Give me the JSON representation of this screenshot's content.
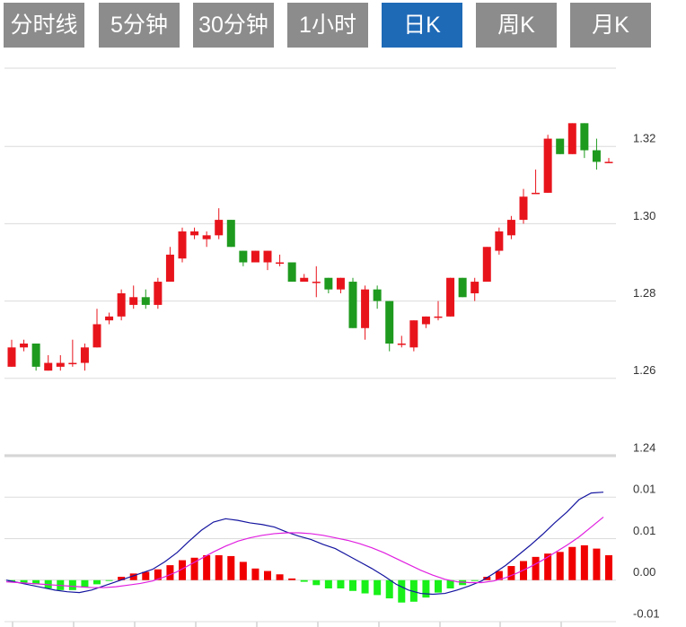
{
  "tabs": [
    "分时线",
    "5分钟",
    "30分钟",
    "1小时",
    "日K",
    "周K",
    "月K"
  ],
  "active_tab": 4,
  "chart_data": [
    {
      "type": "candlestick",
      "up_color": "#e8141c",
      "down_color": "#1e9a1e",
      "grid": true,
      "ylim": [
        1.24,
        1.34
      ],
      "yticks": [
        1.24,
        1.26,
        1.28,
        {
          "value": 1.3,
          "label": "1.30"
        },
        1.32
      ],
      "open": [
        1.263,
        1.268,
        1.269,
        1.262,
        1.263,
        1.264,
        1.264,
        1.268,
        1.275,
        1.276,
        1.279,
        1.281,
        1.279,
        1.285,
        1.291,
        1.297,
        1.296,
        1.297,
        1.301,
        1.293,
        1.29,
        1.29,
        1.29,
        1.29,
        1.285,
        1.285,
        1.286,
        1.283,
        1.285,
        1.273,
        1.283,
        1.28,
        1.269,
        1.268,
        1.274,
        1.276,
        1.276,
        1.286,
        1.282,
        1.285,
        1.293,
        1.297,
        1.301,
        1.308,
        1.308,
        1.322,
        1.318,
        1.326,
        1.319,
        1.316
      ],
      "high": [
        1.27,
        1.27,
        1.269,
        1.266,
        1.266,
        1.27,
        1.269,
        1.278,
        1.277,
        1.283,
        1.284,
        1.283,
        1.286,
        1.294,
        1.299,
        1.299,
        1.298,
        1.304,
        1.301,
        1.293,
        1.293,
        1.293,
        1.292,
        1.29,
        1.287,
        1.289,
        1.286,
        1.286,
        1.286,
        1.284,
        1.284,
        1.28,
        1.271,
        1.275,
        1.276,
        1.28,
        1.286,
        1.286,
        1.286,
        1.294,
        1.299,
        1.302,
        1.309,
        1.314,
        1.323,
        1.322,
        1.326,
        1.326,
        1.322,
        1.317
      ],
      "low": [
        1.263,
        1.267,
        1.262,
        1.262,
        1.262,
        1.263,
        1.262,
        1.268,
        1.274,
        1.275,
        1.278,
        1.278,
        1.278,
        1.285,
        1.29,
        1.296,
        1.294,
        1.296,
        1.294,
        1.289,
        1.29,
        1.288,
        1.289,
        1.285,
        1.285,
        1.281,
        1.282,
        1.282,
        1.273,
        1.27,
        1.278,
        1.267,
        1.268,
        1.267,
        1.273,
        1.275,
        1.276,
        1.281,
        1.28,
        1.285,
        1.292,
        1.296,
        1.3,
        1.308,
        1.308,
        1.318,
        1.318,
        1.317,
        1.314,
        1.316
      ],
      "close": [
        1.268,
        1.269,
        1.263,
        1.264,
        1.264,
        1.264,
        1.268,
        1.274,
        1.276,
        1.282,
        1.281,
        1.279,
        1.285,
        1.292,
        1.298,
        1.298,
        1.297,
        1.301,
        1.294,
        1.29,
        1.293,
        1.293,
        1.29,
        1.285,
        1.286,
        1.285,
        1.283,
        1.286,
        1.273,
        1.283,
        1.28,
        1.269,
        1.269,
        1.275,
        1.276,
        1.276,
        1.286,
        1.281,
        1.285,
        1.294,
        1.298,
        1.301,
        1.307,
        1.308,
        1.322,
        1.318,
        1.326,
        1.319,
        1.316,
        1.316
      ]
    },
    {
      "type": "macd",
      "grid": true,
      "ylim": [
        -0.005,
        0.015
      ],
      "yticks": [
        {
          "value": -0.005,
          "label": "-0.01"
        },
        {
          "value": 0,
          "label": "0.00"
        },
        {
          "value": 0.005,
          "label": "0.01"
        },
        0.01
      ],
      "histogram": {
        "up_color": "#f00000",
        "down_color": "#19f019",
        "values": [
          -0.0002,
          -0.0003,
          -0.0005,
          -0.001,
          -0.0012,
          -0.0012,
          -0.0009,
          -0.0005,
          -0.0001,
          0.0004,
          0.0008,
          0.001,
          0.0013,
          0.0018,
          0.0024,
          0.0027,
          0.003,
          0.003,
          0.0029,
          0.0022,
          0.0014,
          0.0011,
          0.0007,
          0.0002,
          -0.0002,
          -0.0006,
          -0.001,
          -0.001,
          -0.0013,
          -0.0016,
          -0.0018,
          -0.0022,
          -0.0027,
          -0.0026,
          -0.0021,
          -0.0015,
          -0.001,
          -0.0006,
          -0.0001,
          0.0004,
          0.0011,
          0.0017,
          0.0023,
          0.0028,
          0.0032,
          0.0034,
          0.004,
          0.0042,
          0.0038,
          0.003
        ]
      },
      "series": [
        {
          "color": "#1515a0",
          "values": [
            0.0,
            -0.0003,
            -0.0006,
            -0.0009,
            -0.0012,
            -0.0014,
            -0.0015,
            -0.0012,
            -0.0007,
            -0.0002,
            0.0003,
            0.0008,
            0.0013,
            0.0022,
            0.0033,
            0.0047,
            0.006,
            0.007,
            0.0074,
            0.0072,
            0.0069,
            0.0067,
            0.0064,
            0.0058,
            0.0053,
            0.0049,
            0.0043,
            0.0038,
            0.003,
            0.0022,
            0.0014,
            0.0005,
            -0.0005,
            -0.0012,
            -0.0016,
            -0.0017,
            -0.0016,
            -0.0012,
            -0.0007,
            -0.0001,
            0.0008,
            0.0018,
            0.003,
            0.0042,
            0.0055,
            0.0069,
            0.0082,
            0.0097,
            0.0105,
            0.0106
          ]
        },
        {
          "color": "#e020e0",
          "values": [
            -0.0002,
            -0.0003,
            -0.0004,
            -0.0005,
            -0.0006,
            -0.0007,
            -0.0008,
            -0.0009,
            -0.0009,
            -0.0008,
            -0.0006,
            -0.0004,
            -0.0001,
            0.0004,
            0.001,
            0.0018,
            0.0026,
            0.0034,
            0.0041,
            0.0047,
            0.0051,
            0.0054,
            0.0056,
            0.0057,
            0.0057,
            0.0056,
            0.0054,
            0.0051,
            0.0048,
            0.0044,
            0.0039,
            0.0033,
            0.0026,
            0.0019,
            0.0012,
            0.0006,
            0.0001,
            -0.0002,
            -0.0003,
            -0.0003,
            -0.0001,
            0.0003,
            0.0009,
            0.0016,
            0.0024,
            0.0033,
            0.0042,
            0.0052,
            0.0064,
            0.0076
          ]
        }
      ]
    }
  ]
}
